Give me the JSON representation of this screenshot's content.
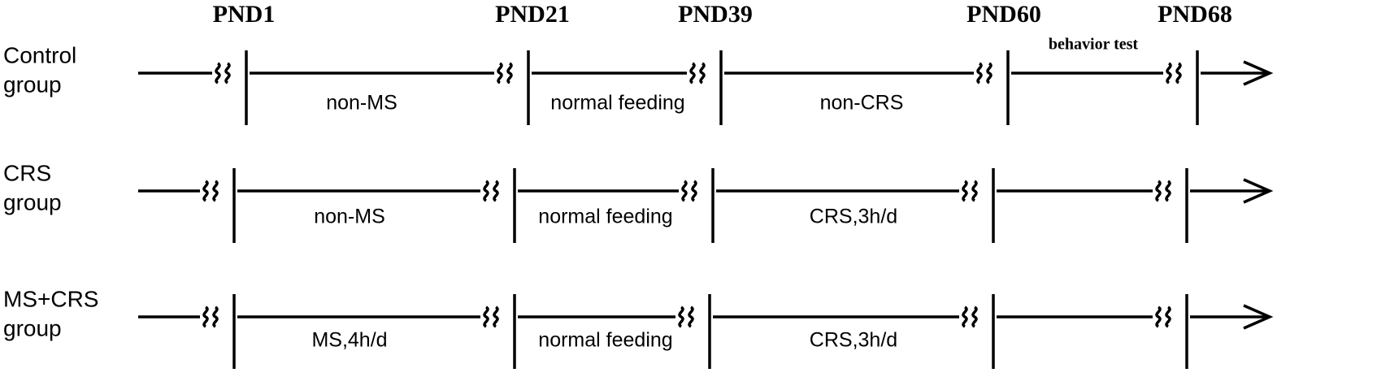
{
  "timepoints": [
    "PND1",
    "PND21",
    "PND39",
    "PND60",
    "PND68"
  ],
  "annotation": "behavior test",
  "rows": [
    {
      "label": [
        "Control",
        "group"
      ],
      "segments": [
        "non-MS",
        "normal feeding",
        "non-CRS"
      ]
    },
    {
      "label": [
        "CRS",
        "group"
      ],
      "segments": [
        "non-MS",
        "normal feeding",
        "CRS,3h/d"
      ]
    },
    {
      "label": [
        "MS+CRS",
        "group"
      ],
      "segments": [
        "MS,4h/d",
        "normal feeding",
        "CRS,3h/d"
      ]
    }
  ]
}
